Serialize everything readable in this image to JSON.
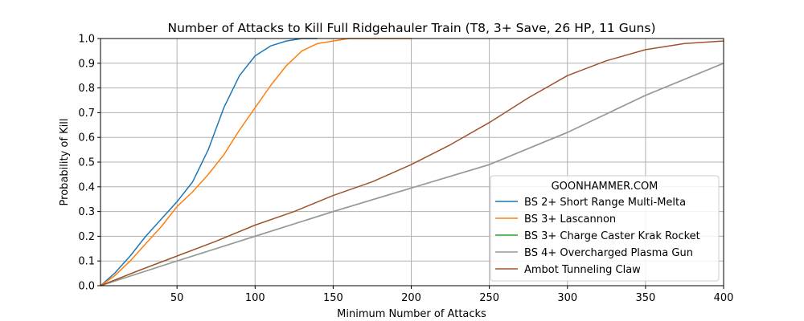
{
  "chart_data": {
    "type": "line",
    "title": "Number of Attacks to Kill Full Ridgehauler Train (T8, 3+ Save, 26 HP, 11 Guns)",
    "xlabel": "Minimum Number of Attacks",
    "ylabel": "Probability of Kill",
    "xlim": [
      1,
      400
    ],
    "ylim": [
      0,
      1.0
    ],
    "xticks": [
      50,
      100,
      150,
      200,
      250,
      300,
      350,
      400
    ],
    "yticks": [
      0.0,
      0.1,
      0.2,
      0.3,
      0.4,
      0.5,
      0.6,
      0.7,
      0.8,
      0.9,
      1.0
    ],
    "grid": true,
    "legend": {
      "title": "GOONHAMMER.COM",
      "placement": "lower right"
    },
    "series": [
      {
        "name": "BS 2+ Short Range Multi-Melta",
        "color": "#1f77b4",
        "points": [
          [
            1,
            0
          ],
          [
            10,
            0.05
          ],
          [
            20,
            0.12
          ],
          [
            30,
            0.2
          ],
          [
            40,
            0.27
          ],
          [
            50,
            0.34
          ],
          [
            60,
            0.42
          ],
          [
            70,
            0.55
          ],
          [
            80,
            0.72
          ],
          [
            90,
            0.85
          ],
          [
            100,
            0.93
          ],
          [
            110,
            0.97
          ],
          [
            120,
            0.99
          ],
          [
            130,
            1.0
          ],
          [
            140,
            1.0
          ]
        ]
      },
      {
        "name": "BS 3+ Lascannon",
        "color": "#ff7f0e",
        "points": [
          [
            1,
            0
          ],
          [
            10,
            0.04
          ],
          [
            20,
            0.1
          ],
          [
            30,
            0.17
          ],
          [
            40,
            0.24
          ],
          [
            50,
            0.32
          ],
          [
            60,
            0.38
          ],
          [
            70,
            0.45
          ],
          [
            80,
            0.53
          ],
          [
            90,
            0.63
          ],
          [
            100,
            0.72
          ],
          [
            110,
            0.81
          ],
          [
            120,
            0.89
          ],
          [
            130,
            0.95
          ],
          [
            140,
            0.98
          ],
          [
            150,
            0.99
          ],
          [
            160,
            1.0
          ],
          [
            200,
            1.0
          ]
        ]
      },
      {
        "name": "BS 3+ Charge Caster Krak Rocket",
        "color": "#2ca02c",
        "points": [
          [
            1,
            0
          ],
          [
            50,
            0.1
          ],
          [
            100,
            0.2
          ],
          [
            150,
            0.3
          ],
          [
            200,
            0.395
          ],
          [
            250,
            0.49
          ],
          [
            300,
            0.62
          ],
          [
            350,
            0.77
          ],
          [
            400,
            0.9
          ]
        ]
      },
      {
        "name": "BS 4+ Overcharged Plasma Gun",
        "color": "#999999",
        "points": [
          [
            1,
            0
          ],
          [
            50,
            0.1
          ],
          [
            100,
            0.2
          ],
          [
            150,
            0.3
          ],
          [
            200,
            0.395
          ],
          [
            250,
            0.49
          ],
          [
            300,
            0.62
          ],
          [
            350,
            0.77
          ],
          [
            400,
            0.9
          ]
        ]
      },
      {
        "name": "Ambot Tunneling Claw",
        "color": "#a0522d",
        "points": [
          [
            1,
            0
          ],
          [
            25,
            0.06
          ],
          [
            50,
            0.12
          ],
          [
            75,
            0.18
          ],
          [
            100,
            0.245
          ],
          [
            125,
            0.3
          ],
          [
            150,
            0.365
          ],
          [
            175,
            0.42
          ],
          [
            200,
            0.49
          ],
          [
            225,
            0.57
          ],
          [
            250,
            0.66
          ],
          [
            275,
            0.76
          ],
          [
            300,
            0.85
          ],
          [
            325,
            0.91
          ],
          [
            350,
            0.955
          ],
          [
            375,
            0.98
          ],
          [
            400,
            0.99
          ]
        ]
      }
    ]
  }
}
